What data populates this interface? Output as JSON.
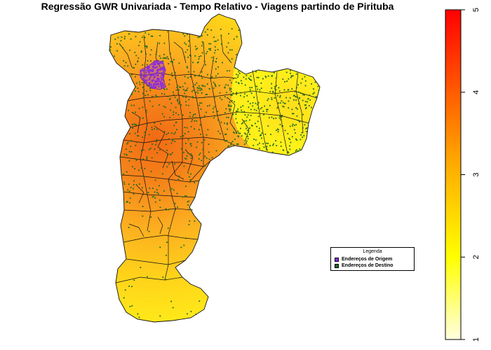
{
  "title": "Regressão GWR Univariada - Tempo Relativo - Viagens partindo de Pirituba",
  "legend": {
    "title": "Legenda",
    "items": [
      {
        "label": "Endereços de Origem",
        "color": "#8a2be2"
      },
      {
        "label": "Endereços de Destino",
        "color": "#1e6b1e"
      }
    ]
  },
  "colorbar": {
    "min": 1,
    "max": 5,
    "ticks": [
      1,
      2,
      3,
      4,
      5
    ],
    "colors": [
      "#ffffe0",
      "#ffff00",
      "#ffa500",
      "#ff0000"
    ]
  },
  "chart_data": {
    "type": "choropleth map",
    "title": "Regressão GWR Univariada - Tempo Relativo - Viagens partindo de Pirituba",
    "value_range": [
      1,
      5
    ],
    "legend_placement": "right-bottom",
    "point_series": [
      {
        "name": "Endereços de Origem",
        "color": "#8a2be2"
      },
      {
        "name": "Endereços de Destino",
        "color": "#1e6b1e"
      }
    ]
  }
}
